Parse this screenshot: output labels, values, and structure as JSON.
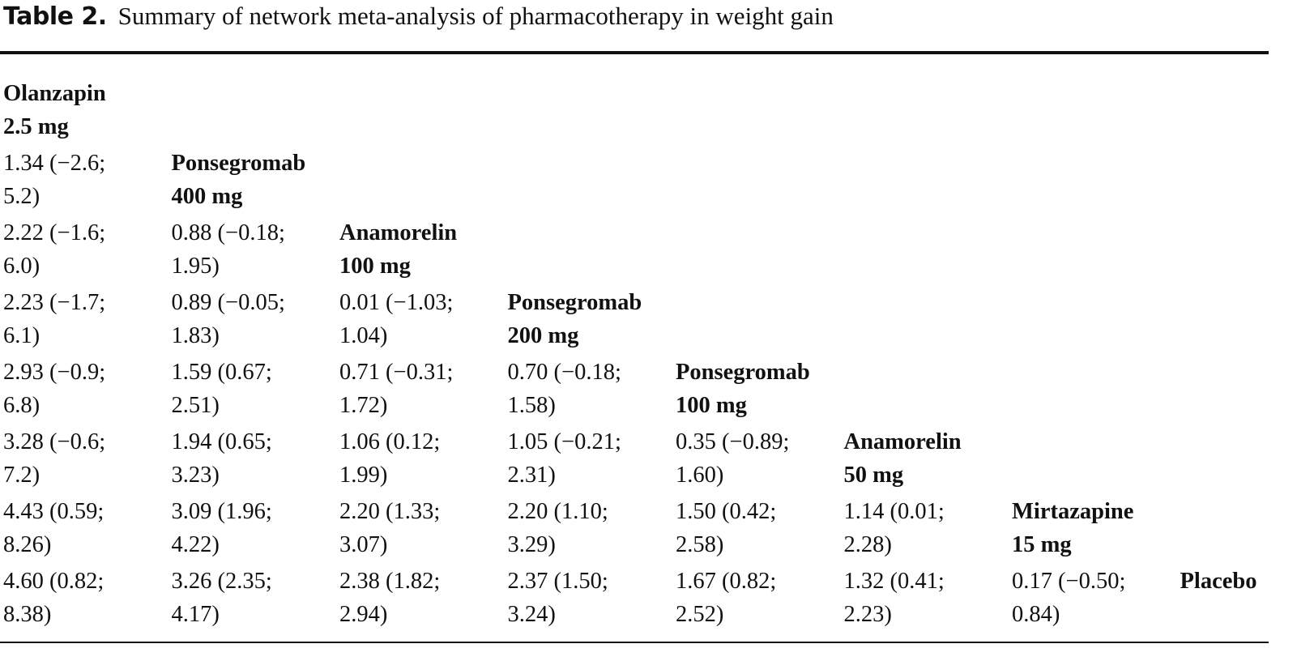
{
  "caption": {
    "label": "Table 2.",
    "text": "Summary of network meta-analysis of pharmacotherapy in weight gain"
  },
  "table": {
    "rows": [
      [
        {
          "type": "drug",
          "l1": "Olanzapin",
          "l2": "2.5 mg"
        }
      ],
      [
        {
          "type": "value",
          "l1": "1.34 (−2.6;",
          "l2": "5.2)"
        },
        {
          "type": "drug",
          "l1": "Ponsegromab",
          "l2": "400 mg"
        }
      ],
      [
        {
          "type": "value",
          "l1": "2.22 (−1.6;",
          "l2": "6.0)"
        },
        {
          "type": "value",
          "l1": "0.88 (−0.18;",
          "l2": "1.95)"
        },
        {
          "type": "drug",
          "l1": "Anamorelin",
          "l2": "100 mg"
        }
      ],
      [
        {
          "type": "value",
          "l1": "2.23 (−1.7;",
          "l2": "6.1)"
        },
        {
          "type": "value",
          "l1": "0.89 (−0.05;",
          "l2": "1.83)"
        },
        {
          "type": "value",
          "l1": "0.01 (−1.03;",
          "l2": "1.04)"
        },
        {
          "type": "drug",
          "l1": "Ponsegromab",
          "l2": "200 mg"
        }
      ],
      [
        {
          "type": "value",
          "l1": "2.93 (−0.9;",
          "l2": "6.8)"
        },
        {
          "type": "value",
          "l1": "1.59 (0.67;",
          "l2": "2.51)"
        },
        {
          "type": "value",
          "l1": "0.71 (−0.31;",
          "l2": "1.72)"
        },
        {
          "type": "value",
          "l1": "0.70 (−0.18;",
          "l2": "1.58)"
        },
        {
          "type": "drug",
          "l1": "Ponsegromab",
          "l2": "100 mg"
        }
      ],
      [
        {
          "type": "value",
          "l1": "3.28 (−0.6;",
          "l2": "7.2)"
        },
        {
          "type": "value",
          "l1": "1.94 (0.65;",
          "l2": "3.23)"
        },
        {
          "type": "value",
          "l1": "1.06 (0.12;",
          "l2": "1.99)"
        },
        {
          "type": "value",
          "l1": "1.05 (−0.21;",
          "l2": "2.31)"
        },
        {
          "type": "value",
          "l1": "0.35 (−0.89;",
          "l2": "1.60)"
        },
        {
          "type": "drug",
          "l1": "Anamorelin",
          "l2": "50 mg"
        }
      ],
      [
        {
          "type": "value",
          "l1": "4.43 (0.59;",
          "l2": "8.26)"
        },
        {
          "type": "value",
          "l1": "3.09 (1.96;",
          "l2": "4.22)"
        },
        {
          "type": "value",
          "l1": "2.20 (1.33;",
          "l2": "3.07)"
        },
        {
          "type": "value",
          "l1": "2.20 (1.10;",
          "l2": "3.29)"
        },
        {
          "type": "value",
          "l1": "1.50 (0.42;",
          "l2": "2.58)"
        },
        {
          "type": "value",
          "l1": "1.14 (0.01;",
          "l2": "2.28)"
        },
        {
          "type": "drug",
          "l1": "Mirtazapine",
          "l2": "15 mg"
        }
      ],
      [
        {
          "type": "value",
          "l1": "4.60 (0.82;",
          "l2": "8.38)"
        },
        {
          "type": "value",
          "l1": "3.26 (2.35;",
          "l2": "4.17)"
        },
        {
          "type": "value",
          "l1": "2.38 (1.82;",
          "l2": "2.94)"
        },
        {
          "type": "value",
          "l1": "2.37 (1.50;",
          "l2": "3.24)"
        },
        {
          "type": "value",
          "l1": "1.67 (0.82;",
          "l2": "2.52)"
        },
        {
          "type": "value",
          "l1": "1.32 (0.41;",
          "l2": "2.23)"
        },
        {
          "type": "value",
          "l1": "0.17 (−0.50;",
          "l2": "0.84)"
        },
        {
          "type": "drug",
          "l1": "Placebo",
          "l2": ""
        }
      ]
    ]
  }
}
